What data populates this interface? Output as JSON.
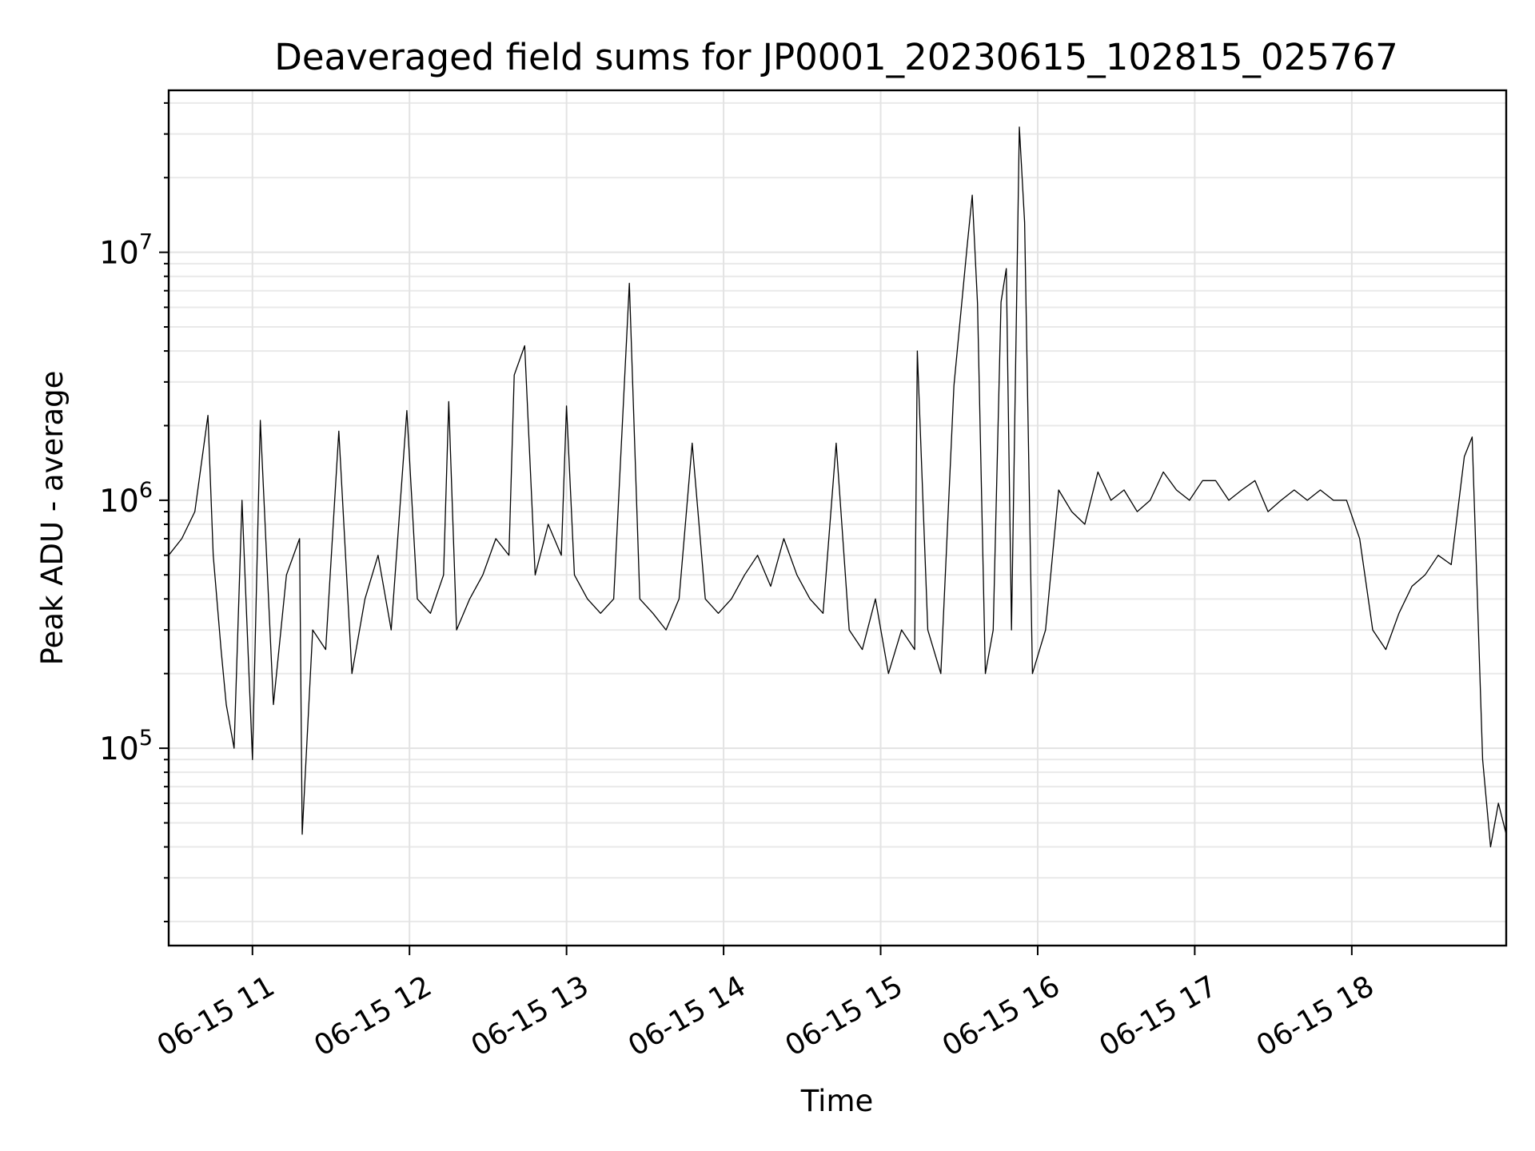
{
  "chart_data": {
    "type": "line",
    "title": "Deaveraged field sums for JP0001_20230615_102815_025767",
    "xlabel": "Time",
    "ylabel": "Peak ADU - average",
    "yscale": "log",
    "grid": "on (major and minor)",
    "legend": "none",
    "line_color": "#000000",
    "xlim": [
      "2023-06-15 10:28",
      "2023-06-15 18:59"
    ],
    "ylim": [
      16000,
      45000000
    ],
    "xticks": [
      {
        "label": "06-15 11",
        "value": "2023-06-15 11:00"
      },
      {
        "label": "06-15 12",
        "value": "2023-06-15 12:00"
      },
      {
        "label": "06-15 13",
        "value": "2023-06-15 13:00"
      },
      {
        "label": "06-15 14",
        "value": "2023-06-15 14:00"
      },
      {
        "label": "06-15 15",
        "value": "2023-06-15 15:00"
      },
      {
        "label": "06-15 16",
        "value": "2023-06-15 16:00"
      },
      {
        "label": "06-15 17",
        "value": "2023-06-15 17:00"
      },
      {
        "label": "06-15 18",
        "value": "2023-06-15 18:00"
      }
    ],
    "yticks": [
      {
        "base": "10",
        "exp": "5",
        "value": 100000
      },
      {
        "base": "10",
        "exp": "6",
        "value": 1000000
      },
      {
        "base": "10",
        "exp": "7",
        "value": 10000000
      }
    ],
    "series": [
      {
        "x": [
          "2023-06-15 10:28",
          "2023-06-15 10:33",
          "2023-06-15 10:38",
          "2023-06-15 10:43",
          "2023-06-15 10:45",
          "2023-06-15 10:48",
          "2023-06-15 10:50",
          "2023-06-15 10:53",
          "2023-06-15 10:56",
          "2023-06-15 10:58",
          "2023-06-15 11:00",
          "2023-06-15 11:03",
          "2023-06-15 11:08",
          "2023-06-15 11:13",
          "2023-06-15 11:18",
          "2023-06-15 11:19",
          "2023-06-15 11:23",
          "2023-06-15 11:28",
          "2023-06-15 11:33",
          "2023-06-15 11:38",
          "2023-06-15 11:43",
          "2023-06-15 11:48",
          "2023-06-15 11:53",
          "2023-06-15 11:59",
          "2023-06-15 12:03",
          "2023-06-15 12:08",
          "2023-06-15 12:13",
          "2023-06-15 12:15",
          "2023-06-15 12:18",
          "2023-06-15 12:23",
          "2023-06-15 12:28",
          "2023-06-15 12:33",
          "2023-06-15 12:38",
          "2023-06-15 12:40",
          "2023-06-15 12:44",
          "2023-06-15 12:48",
          "2023-06-15 12:53",
          "2023-06-15 12:58",
          "2023-06-15 13:00",
          "2023-06-15 13:03",
          "2023-06-15 13:08",
          "2023-06-15 13:13",
          "2023-06-15 13:18",
          "2023-06-15 13:24",
          "2023-06-15 13:28",
          "2023-06-15 13:33",
          "2023-06-15 13:38",
          "2023-06-15 13:43",
          "2023-06-15 13:48",
          "2023-06-15 13:53",
          "2023-06-15 13:58",
          "2023-06-15 14:03",
          "2023-06-15 14:08",
          "2023-06-15 14:13",
          "2023-06-15 14:18",
          "2023-06-15 14:23",
          "2023-06-15 14:28",
          "2023-06-15 14:33",
          "2023-06-15 14:38",
          "2023-06-15 14:43",
          "2023-06-15 14:48",
          "2023-06-15 14:53",
          "2023-06-15 14:58",
          "2023-06-15 15:03",
          "2023-06-15 15:08",
          "2023-06-15 15:13",
          "2023-06-15 15:14",
          "2023-06-15 15:18",
          "2023-06-15 15:23",
          "2023-06-15 15:28",
          "2023-06-15 15:33",
          "2023-06-15 15:35",
          "2023-06-15 15:37",
          "2023-06-15 15:40",
          "2023-06-15 15:43",
          "2023-06-15 15:46",
          "2023-06-15 15:48",
          "2023-06-15 15:50",
          "2023-06-15 15:53",
          "2023-06-15 15:55",
          "2023-06-15 15:58",
          "2023-06-15 16:03",
          "2023-06-15 16:08",
          "2023-06-15 16:13",
          "2023-06-15 16:18",
          "2023-06-15 16:23",
          "2023-06-15 16:28",
          "2023-06-15 16:33",
          "2023-06-15 16:38",
          "2023-06-15 16:43",
          "2023-06-15 16:48",
          "2023-06-15 16:53",
          "2023-06-15 16:58",
          "2023-06-15 17:03",
          "2023-06-15 17:08",
          "2023-06-15 17:13",
          "2023-06-15 17:18",
          "2023-06-15 17:23",
          "2023-06-15 17:28",
          "2023-06-15 17:33",
          "2023-06-15 17:38",
          "2023-06-15 17:43",
          "2023-06-15 17:48",
          "2023-06-15 17:53",
          "2023-06-15 17:58",
          "2023-06-15 18:03",
          "2023-06-15 18:08",
          "2023-06-15 18:13",
          "2023-06-15 18:18",
          "2023-06-15 18:23",
          "2023-06-15 18:28",
          "2023-06-15 18:33",
          "2023-06-15 18:38",
          "2023-06-15 18:43",
          "2023-06-15 18:46",
          "2023-06-15 18:48",
          "2023-06-15 18:50",
          "2023-06-15 18:53",
          "2023-06-15 18:56",
          "2023-06-15 18:59"
        ],
        "y": [
          600000,
          700000,
          900000,
          2200000,
          600000,
          250000,
          150000,
          100000,
          1000000,
          300000,
          90000,
          2100000,
          150000,
          500000,
          700000,
          45000,
          300000,
          250000,
          1900000,
          200000,
          400000,
          600000,
          300000,
          2300000,
          400000,
          350000,
          500000,
          2500000,
          300000,
          400000,
          500000,
          700000,
          600000,
          3200000,
          4200000,
          500000,
          800000,
          600000,
          2400000,
          500000,
          400000,
          350000,
          400000,
          7500000,
          400000,
          350000,
          300000,
          400000,
          1700000,
          400000,
          350000,
          400000,
          500000,
          600000,
          450000,
          700000,
          500000,
          400000,
          350000,
          1700000,
          300000,
          250000,
          400000,
          200000,
          300000,
          250000,
          4000000,
          300000,
          200000,
          2900000,
          10500000,
          17000000,
          6200000,
          200000,
          300000,
          6300000,
          8600000,
          300000,
          32000000,
          13200000,
          200000,
          300000,
          1100000,
          900000,
          800000,
          1300000,
          1000000,
          1100000,
          900000,
          1000000,
          1300000,
          1100000,
          1000000,
          1200000,
          1200000,
          1000000,
          1100000,
          1200000,
          900000,
          1000000,
          1100000,
          1000000,
          1100000,
          1000000,
          1000000,
          700000,
          300000,
          250000,
          350000,
          450000,
          500000,
          600000,
          550000,
          1500000,
          1800000,
          400000,
          90000,
          40000,
          60000,
          45000
        ]
      }
    ]
  }
}
